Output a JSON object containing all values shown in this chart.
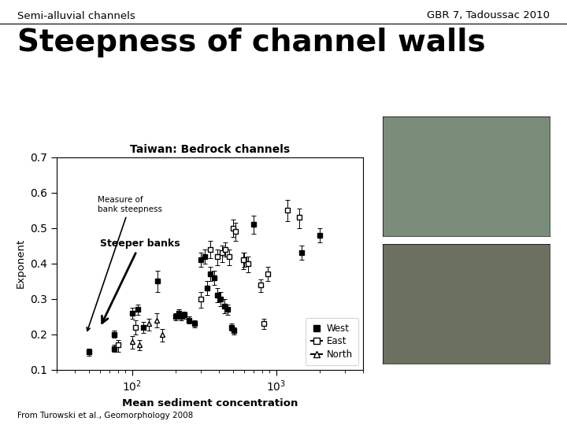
{
  "header_left": "Semi-alluvial channels",
  "header_right": "GBR 7, Tadoussac 2010",
  "slide_title": "Steepness of channel walls",
  "plot_title": "Taiwan: Bedrock channels",
  "xlabel": "Mean sediment concentration",
  "ylabel": "Exponent",
  "footer": "From Turowski et al., Geomorphology 2008",
  "annotation_text": "Measure of\nbank steepness",
  "annotation2_text": "Steeper banks",
  "xlim": [
    30,
    4000
  ],
  "ylim": [
    0.1,
    0.7
  ],
  "yticks": [
    0.1,
    0.2,
    0.3,
    0.4,
    0.5,
    0.6,
    0.7
  ],
  "west_data": [
    [
      50,
      0.15,
      0.01,
      0.01
    ],
    [
      75,
      0.2,
      0.01,
      0.01
    ],
    [
      75,
      0.16,
      0.01,
      0.01
    ],
    [
      100,
      0.26,
      0.015,
      0.015
    ],
    [
      110,
      0.27,
      0.015,
      0.015
    ],
    [
      120,
      0.22,
      0.015,
      0.015
    ],
    [
      150,
      0.35,
      0.03,
      0.03
    ],
    [
      200,
      0.25,
      0.01,
      0.01
    ],
    [
      210,
      0.26,
      0.01,
      0.01
    ],
    [
      220,
      0.25,
      0.01,
      0.01
    ],
    [
      230,
      0.255,
      0.01,
      0.01
    ],
    [
      250,
      0.24,
      0.01,
      0.01
    ],
    [
      270,
      0.23,
      0.01,
      0.01
    ],
    [
      300,
      0.41,
      0.02,
      0.02
    ],
    [
      320,
      0.42,
      0.02,
      0.02
    ],
    [
      330,
      0.33,
      0.02,
      0.02
    ],
    [
      350,
      0.37,
      0.02,
      0.02
    ],
    [
      370,
      0.36,
      0.02,
      0.02
    ],
    [
      390,
      0.31,
      0.02,
      0.02
    ],
    [
      410,
      0.3,
      0.02,
      0.02
    ],
    [
      440,
      0.28,
      0.02,
      0.02
    ],
    [
      460,
      0.27,
      0.015,
      0.015
    ],
    [
      490,
      0.22,
      0.01,
      0.01
    ],
    [
      510,
      0.21,
      0.01,
      0.01
    ],
    [
      600,
      0.41,
      0.02,
      0.02
    ],
    [
      700,
      0.51,
      0.025,
      0.025
    ],
    [
      1500,
      0.43,
      0.02,
      0.02
    ],
    [
      2000,
      0.48,
      0.02,
      0.02
    ]
  ],
  "east_data": [
    [
      80,
      0.17,
      0.02,
      0.015
    ],
    [
      105,
      0.22,
      0.02,
      0.02
    ],
    [
      300,
      0.3,
      0.025,
      0.02
    ],
    [
      350,
      0.44,
      0.025,
      0.025
    ],
    [
      390,
      0.42,
      0.025,
      0.02
    ],
    [
      420,
      0.43,
      0.025,
      0.02
    ],
    [
      445,
      0.44,
      0.02,
      0.02
    ],
    [
      470,
      0.42,
      0.025,
      0.02
    ],
    [
      500,
      0.5,
      0.025,
      0.025
    ],
    [
      520,
      0.49,
      0.025,
      0.025
    ],
    [
      590,
      0.41,
      0.025,
      0.02
    ],
    [
      640,
      0.4,
      0.025,
      0.02
    ],
    [
      780,
      0.34,
      0.02,
      0.015
    ],
    [
      880,
      0.37,
      0.02,
      0.02
    ],
    [
      1200,
      0.55,
      0.03,
      0.03
    ],
    [
      1450,
      0.53,
      0.03,
      0.025
    ],
    [
      820,
      0.23,
      0.015,
      0.015
    ]
  ],
  "north_data": [
    [
      100,
      0.18,
      0.02,
      0.015
    ],
    [
      112,
      0.17,
      0.015,
      0.015
    ],
    [
      130,
      0.23,
      0.02,
      0.015
    ],
    [
      148,
      0.24,
      0.02,
      0.02
    ],
    [
      162,
      0.2,
      0.02,
      0.015
    ]
  ]
}
